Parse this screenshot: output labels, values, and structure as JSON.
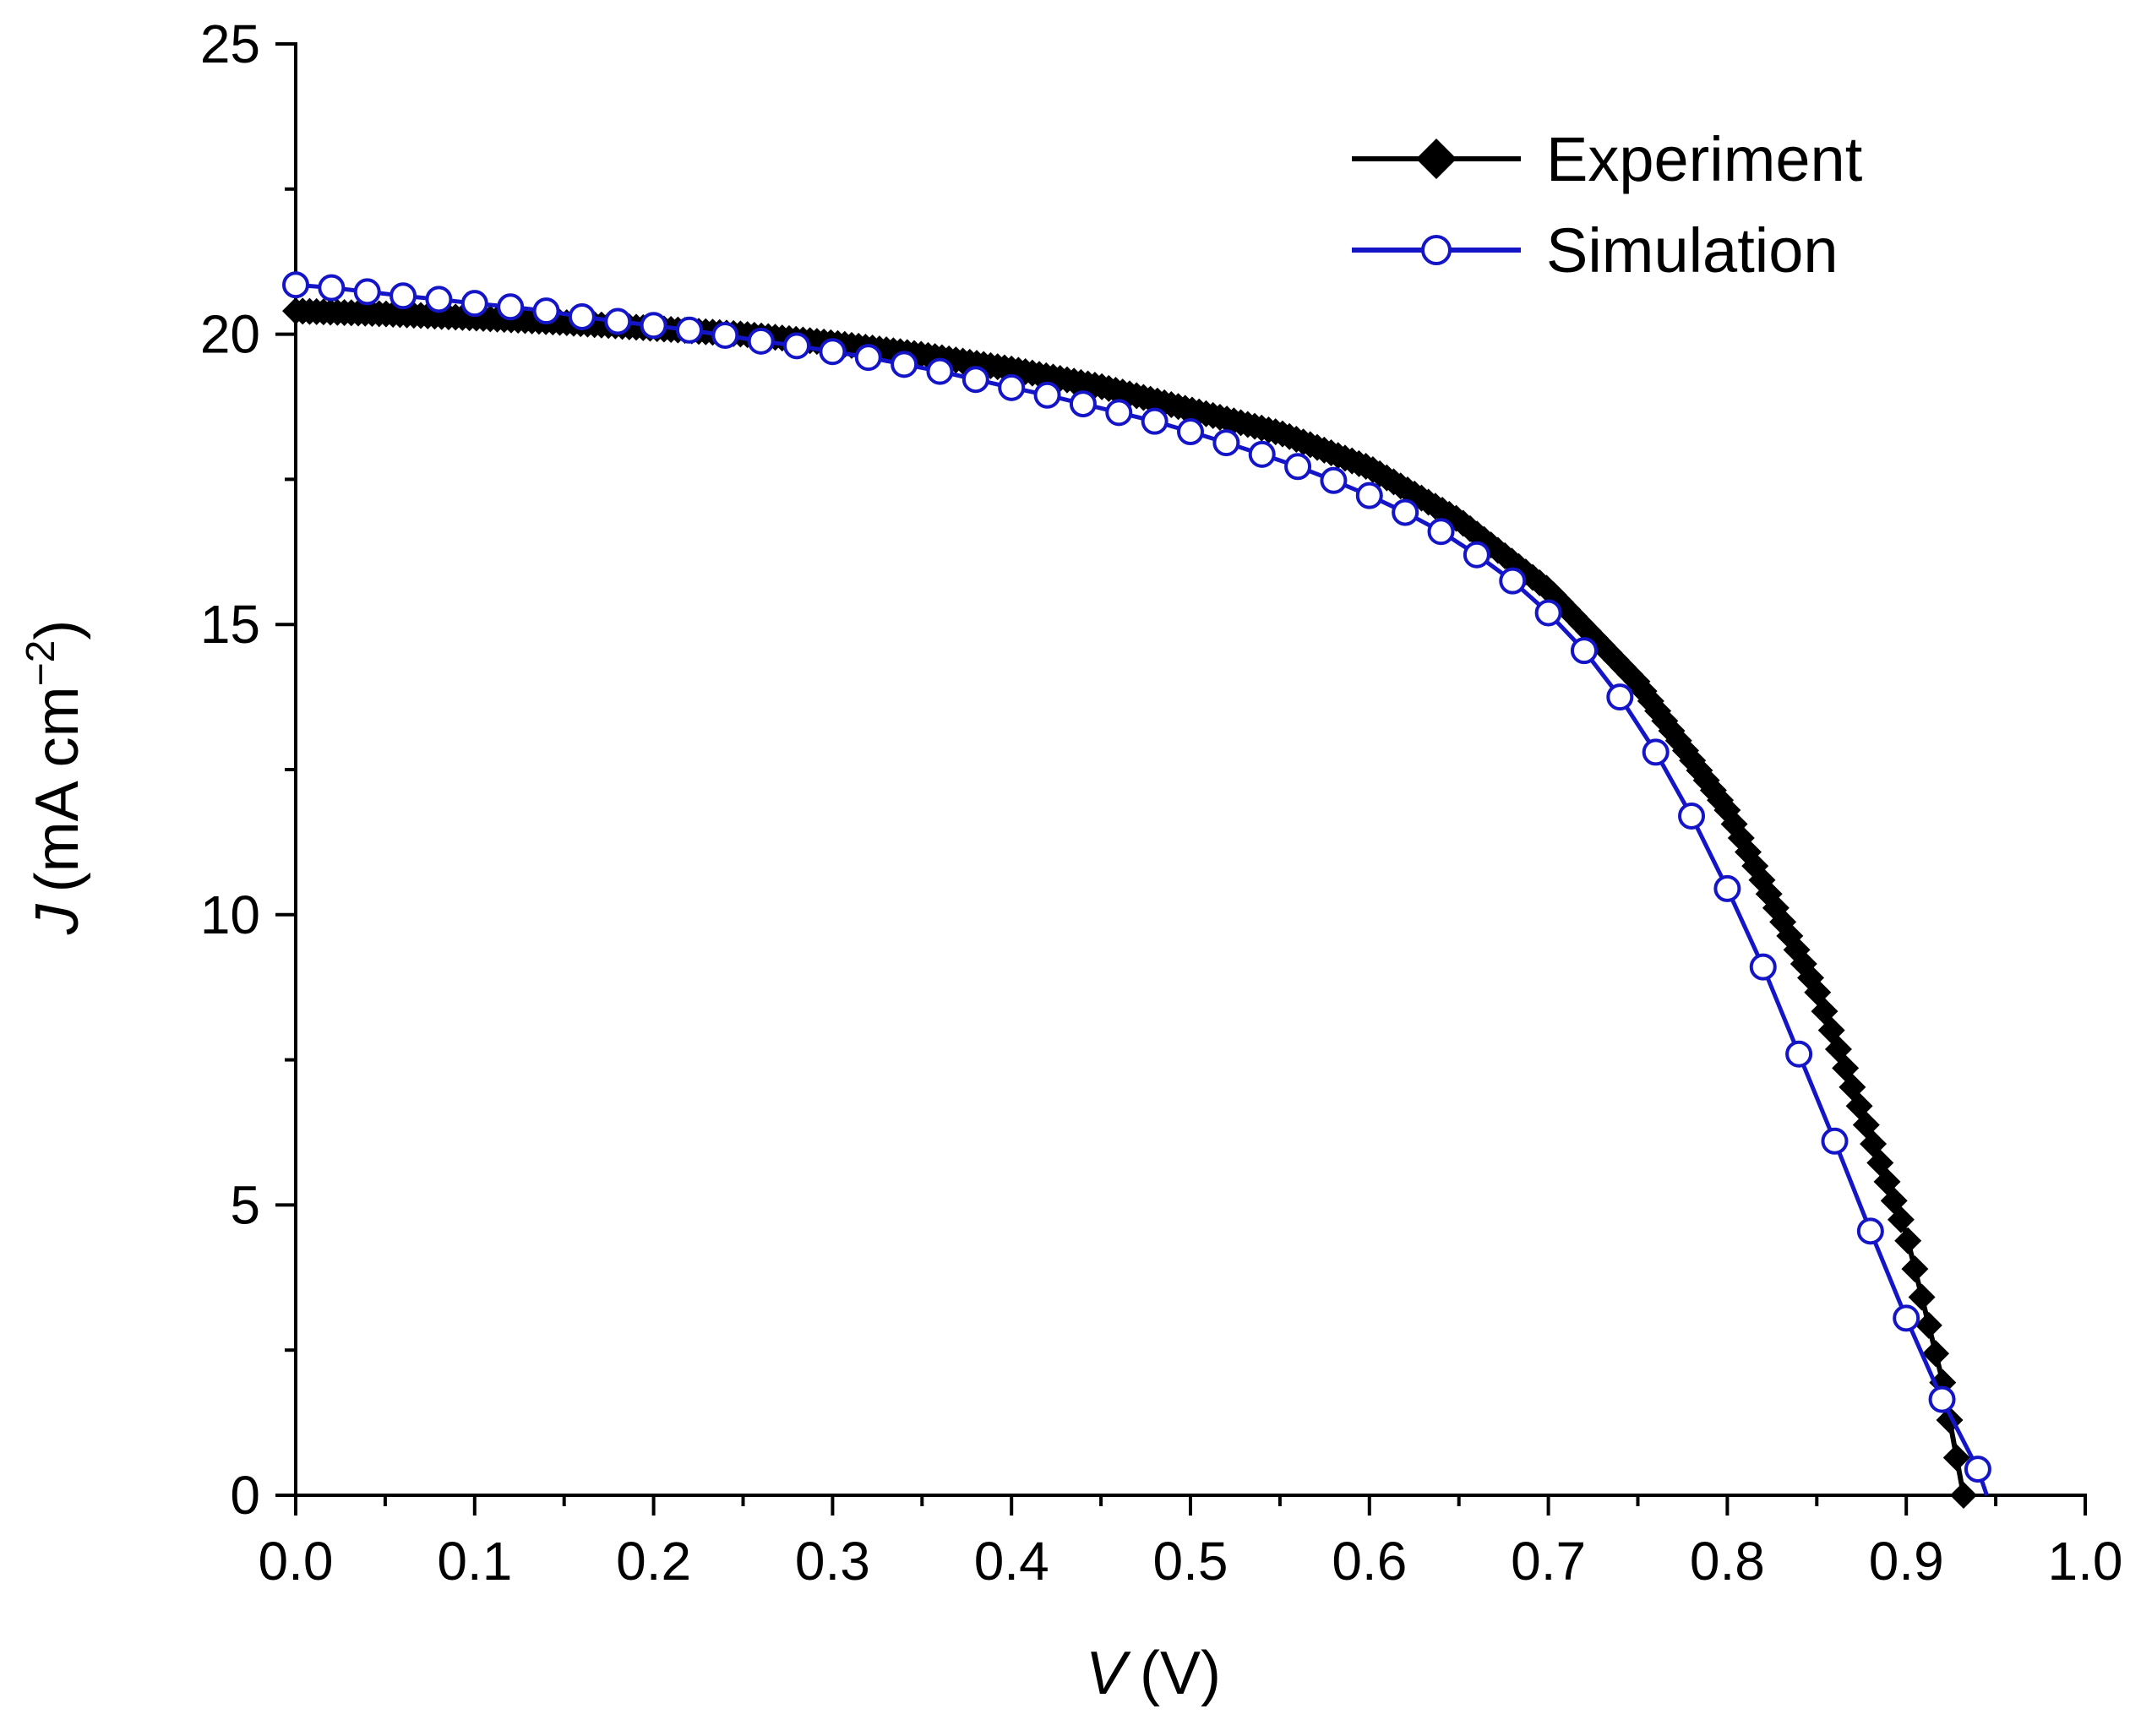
{
  "chart_data": {
    "type": "line",
    "title": "",
    "xlabel": {
      "symbol": "V",
      "unit": "(V)"
    },
    "ylabel": {
      "symbol": "J",
      "unit_pre": "(mA cm",
      "unit_exp": "−2",
      "unit_post": ")"
    },
    "xlim": [
      0.0,
      1.0
    ],
    "ylim": [
      0,
      25
    ],
    "x_ticks": [
      "0.0",
      "0.1",
      "0.2",
      "0.3",
      "0.4",
      "0.5",
      "0.6",
      "0.7",
      "0.8",
      "0.9",
      "1.0"
    ],
    "y_ticks": [
      "0",
      "5",
      "10",
      "15",
      "20",
      "25"
    ],
    "grid": false,
    "legend_position": "top-right",
    "series": [
      {
        "name": "Experiment",
        "color": "#000000",
        "marker": "diamond-filled",
        "x": [
          0.0,
          0.05,
          0.1,
          0.15,
          0.2,
          0.25,
          0.3,
          0.35,
          0.4,
          0.45,
          0.5,
          0.55,
          0.6,
          0.65,
          0.7,
          0.75,
          0.8,
          0.85,
          0.9,
          0.92,
          0.932
        ],
        "y": [
          20.4,
          20.35,
          20.28,
          20.2,
          20.1,
          20.0,
          19.85,
          19.65,
          19.4,
          19.1,
          18.7,
          18.3,
          17.7,
          16.8,
          15.6,
          14.0,
          11.8,
          8.7,
          4.5,
          2.0,
          0.0
        ]
      },
      {
        "name": "Simulation",
        "color": "#1515c8",
        "marker": "circle-open",
        "x": [
          0.0,
          0.02,
          0.04,
          0.06,
          0.08,
          0.1,
          0.12,
          0.14,
          0.16,
          0.18,
          0.2,
          0.22,
          0.24,
          0.26,
          0.28,
          0.3,
          0.32,
          0.34,
          0.36,
          0.38,
          0.4,
          0.42,
          0.44,
          0.46,
          0.48,
          0.5,
          0.52,
          0.54,
          0.56,
          0.58,
          0.6,
          0.62,
          0.64,
          0.66,
          0.68,
          0.7,
          0.72,
          0.74,
          0.76,
          0.78,
          0.8,
          0.82,
          0.84,
          0.86,
          0.88,
          0.9,
          0.92,
          0.94
        ],
        "y": [
          20.85,
          20.8,
          20.73,
          20.66,
          20.6,
          20.53,
          20.47,
          20.4,
          20.3,
          20.22,
          20.15,
          20.07,
          19.98,
          19.88,
          19.8,
          19.7,
          19.6,
          19.48,
          19.36,
          19.22,
          19.08,
          18.95,
          18.8,
          18.65,
          18.5,
          18.32,
          18.13,
          17.93,
          17.72,
          17.48,
          17.22,
          16.93,
          16.6,
          16.2,
          15.75,
          15.2,
          14.55,
          13.75,
          12.8,
          11.7,
          10.45,
          9.1,
          7.6,
          6.1,
          4.55,
          3.05,
          1.65,
          0.45
        ]
      }
    ]
  }
}
